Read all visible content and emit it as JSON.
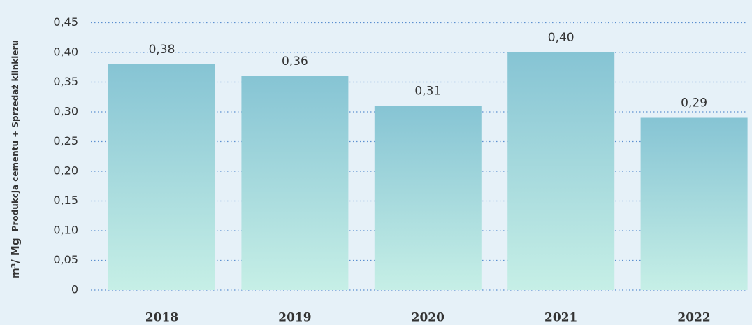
{
  "chart_data": {
    "type": "bar",
    "ylabel": [
      "m³/ Mg",
      "Produkcja cementu + Sprzedaż klinkieru"
    ],
    "categories": [
      "2018",
      "2019",
      "2020",
      "2021",
      "2022"
    ],
    "values": [
      0.38,
      0.36,
      0.31,
      0.4,
      0.29
    ],
    "value_labels": [
      "0,38",
      "0,36",
      "0,31",
      "0,40",
      "0,29"
    ],
    "color": [
      "#86c4d4",
      "#c6efe6"
    ],
    "ylim": [
      0,
      0.45
    ],
    "yticks": [
      0,
      {
        "value": 0.05,
        "label": "0,05"
      },
      {
        "value": 0.1,
        "label": "0,10"
      },
      {
        "value": 0.15,
        "label": "0,15"
      },
      {
        "value": 0.2,
        "label": "0,20"
      },
      {
        "value": 0.25,
        "label": "0,25"
      },
      {
        "value": 0.3,
        "label": "0,30"
      },
      {
        "value": 0.35,
        "label": "0,35"
      },
      {
        "value": 0.4,
        "label": "0,40"
      },
      {
        "value": 0.45,
        "label": "0,45"
      }
    ],
    "grid": true
  }
}
